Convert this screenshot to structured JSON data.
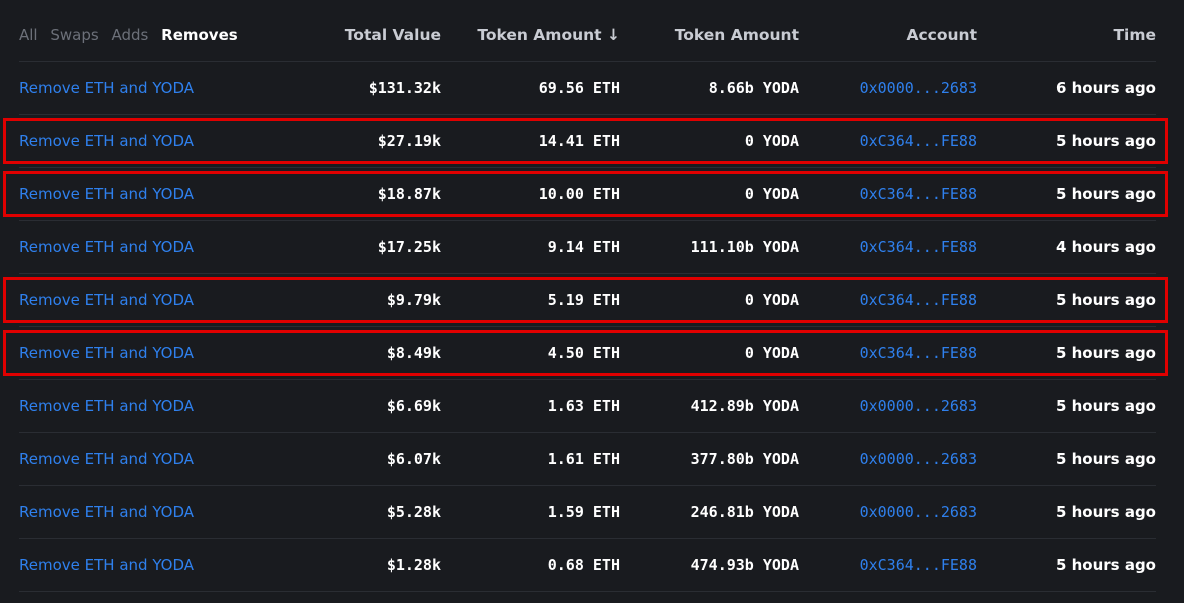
{
  "tabs": [
    {
      "label": "All",
      "active": false
    },
    {
      "label": "Swaps",
      "active": false
    },
    {
      "label": "Adds",
      "active": false
    },
    {
      "label": "Removes",
      "active": true
    }
  ],
  "headers": {
    "total_value": "Total Value",
    "token_amount_0": "Token Amount",
    "sort_arrow": "↓",
    "token_amount_1": "Token Amount",
    "account": "Account",
    "time": "Time"
  },
  "rows": [
    {
      "name": "Remove ETH and YODA",
      "total": "$131.32k",
      "eth": "69.56 ETH",
      "yoda": "8.66b YODA",
      "account": "0x0000...2683",
      "time": "6 hours ago",
      "highlighted": false
    },
    {
      "name": "Remove ETH and YODA",
      "total": "$27.19k",
      "eth": "14.41 ETH",
      "yoda": "0 YODA",
      "account": "0xC364...FE88",
      "time": "5 hours ago",
      "highlighted": true
    },
    {
      "name": "Remove ETH and YODA",
      "total": "$18.87k",
      "eth": "10.00 ETH",
      "yoda": "0 YODA",
      "account": "0xC364...FE88",
      "time": "5 hours ago",
      "highlighted": true
    },
    {
      "name": "Remove ETH and YODA",
      "total": "$17.25k",
      "eth": "9.14 ETH",
      "yoda": "111.10b YODA",
      "account": "0xC364...FE88",
      "time": "4 hours ago",
      "highlighted": false
    },
    {
      "name": "Remove ETH and YODA",
      "total": "$9.79k",
      "eth": "5.19 ETH",
      "yoda": "0 YODA",
      "account": "0xC364...FE88",
      "time": "5 hours ago",
      "highlighted": true
    },
    {
      "name": "Remove ETH and YODA",
      "total": "$8.49k",
      "eth": "4.50 ETH",
      "yoda": "0 YODA",
      "account": "0xC364...FE88",
      "time": "5 hours ago",
      "highlighted": true
    },
    {
      "name": "Remove ETH and YODA",
      "total": "$6.69k",
      "eth": "1.63 ETH",
      "yoda": "412.89b YODA",
      "account": "0x0000...2683",
      "time": "5 hours ago",
      "highlighted": false
    },
    {
      "name": "Remove ETH and YODA",
      "total": "$6.07k",
      "eth": "1.61 ETH",
      "yoda": "377.80b YODA",
      "account": "0x0000...2683",
      "time": "5 hours ago",
      "highlighted": false
    },
    {
      "name": "Remove ETH and YODA",
      "total": "$5.28k",
      "eth": "1.59 ETH",
      "yoda": "246.81b YODA",
      "account": "0x0000...2683",
      "time": "5 hours ago",
      "highlighted": false
    },
    {
      "name": "Remove ETH and YODA",
      "total": "$1.28k",
      "eth": "0.68 ETH",
      "yoda": "474.93b YODA",
      "account": "0xC364...FE88",
      "time": "5 hours ago",
      "highlighted": false
    }
  ],
  "colors": {
    "background": "#191b1f",
    "link": "#2f80ed",
    "highlight_border": "#e00000",
    "divider": "#2a2d33"
  }
}
